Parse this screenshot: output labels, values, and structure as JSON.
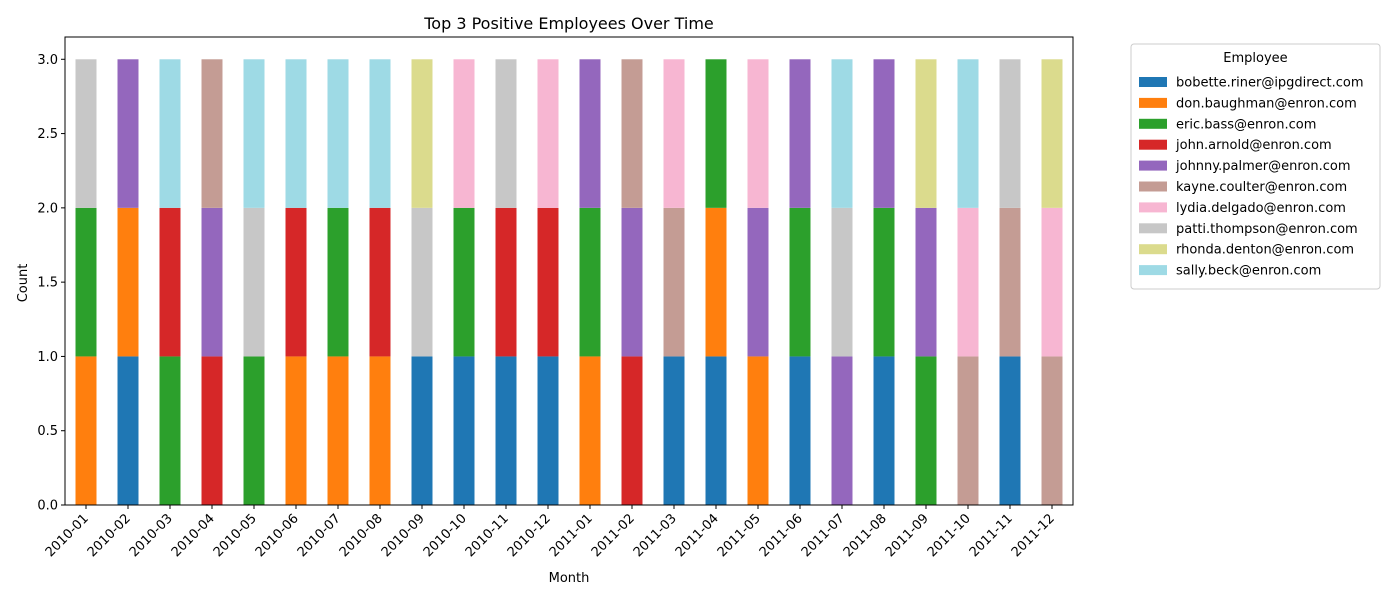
{
  "chart_data": {
    "type": "bar",
    "stacked": true,
    "title": "Top 3 Positive Employees Over Time",
    "xlabel": "Month",
    "ylabel": "Count",
    "ylim": [
      0,
      3.15
    ],
    "yticks": [
      "0.0",
      "0.5",
      "1.0",
      "1.5",
      "2.0",
      "2.5",
      "3.0"
    ],
    "legend_title": "Employee",
    "legend_placement": "outside-top-right",
    "categories": [
      "2010-01",
      "2010-02",
      "2010-03",
      "2010-04",
      "2010-05",
      "2010-06",
      "2010-07",
      "2010-08",
      "2010-09",
      "2010-10",
      "2010-11",
      "2010-12",
      "2011-01",
      "2011-02",
      "2011-03",
      "2011-04",
      "2011-05",
      "2011-06",
      "2011-07",
      "2011-08",
      "2011-09",
      "2011-10",
      "2011-11",
      "2011-12"
    ],
    "series": [
      {
        "name": "bobette.riner@ipgdirect.com",
        "color": "#1f77b4",
        "values": [
          0,
          1,
          0,
          0,
          0,
          0,
          0,
          0,
          1,
          1,
          1,
          1,
          0,
          0,
          1,
          1,
          0,
          1,
          0,
          1,
          0,
          0,
          1,
          0
        ]
      },
      {
        "name": "don.baughman@enron.com",
        "color": "#ff7f0e",
        "values": [
          1,
          1,
          0,
          0,
          0,
          1,
          1,
          1,
          0,
          0,
          0,
          0,
          1,
          0,
          0,
          1,
          1,
          0,
          0,
          0,
          0,
          0,
          0,
          0
        ]
      },
      {
        "name": "eric.bass@enron.com",
        "color": "#2ca02c",
        "values": [
          1,
          0,
          1,
          0,
          1,
          0,
          1,
          0,
          0,
          1,
          0,
          0,
          1,
          0,
          0,
          1,
          0,
          1,
          0,
          1,
          1,
          0,
          0,
          0
        ]
      },
      {
        "name": "john.arnold@enron.com",
        "color": "#d62728",
        "values": [
          0,
          0,
          1,
          1,
          0,
          1,
          0,
          1,
          0,
          0,
          1,
          1,
          0,
          1,
          0,
          0,
          0,
          0,
          0,
          0,
          0,
          0,
          0,
          0
        ]
      },
      {
        "name": "johnny.palmer@enron.com",
        "color": "#9467bd",
        "values": [
          0,
          1,
          0,
          1,
          0,
          0,
          0,
          0,
          0,
          0,
          0,
          0,
          1,
          1,
          0,
          0,
          1,
          1,
          1,
          1,
          1,
          0,
          0,
          0
        ]
      },
      {
        "name": "kayne.coulter@enron.com",
        "color": "#c49c94",
        "values": [
          0,
          0,
          0,
          1,
          0,
          0,
          0,
          0,
          0,
          0,
          0,
          0,
          0,
          1,
          1,
          0,
          0,
          0,
          0,
          0,
          0,
          1,
          1,
          1
        ]
      },
      {
        "name": "lydia.delgado@enron.com",
        "color": "#f7b6d2",
        "values": [
          0,
          0,
          0,
          0,
          0,
          0,
          0,
          0,
          0,
          1,
          0,
          1,
          0,
          0,
          1,
          0,
          1,
          0,
          0,
          0,
          0,
          1,
          0,
          1
        ]
      },
      {
        "name": "patti.thompson@enron.com",
        "color": "#c7c7c7",
        "values": [
          1,
          0,
          0,
          0,
          1,
          0,
          0,
          0,
          1,
          0,
          1,
          0,
          0,
          0,
          0,
          0,
          0,
          0,
          1,
          0,
          0,
          0,
          1,
          0
        ]
      },
      {
        "name": "rhonda.denton@enron.com",
        "color": "#dbdb8d",
        "values": [
          0,
          0,
          0,
          0,
          0,
          0,
          0,
          0,
          1,
          0,
          0,
          0,
          0,
          0,
          0,
          0,
          0,
          0,
          0,
          0,
          1,
          0,
          0,
          1
        ]
      },
      {
        "name": "sally.beck@enron.com",
        "color": "#9edae5",
        "values": [
          0,
          0,
          1,
          0,
          1,
          1,
          1,
          1,
          0,
          0,
          0,
          0,
          0,
          0,
          0,
          0,
          0,
          0,
          1,
          0,
          0,
          1,
          0,
          0
        ]
      }
    ]
  }
}
